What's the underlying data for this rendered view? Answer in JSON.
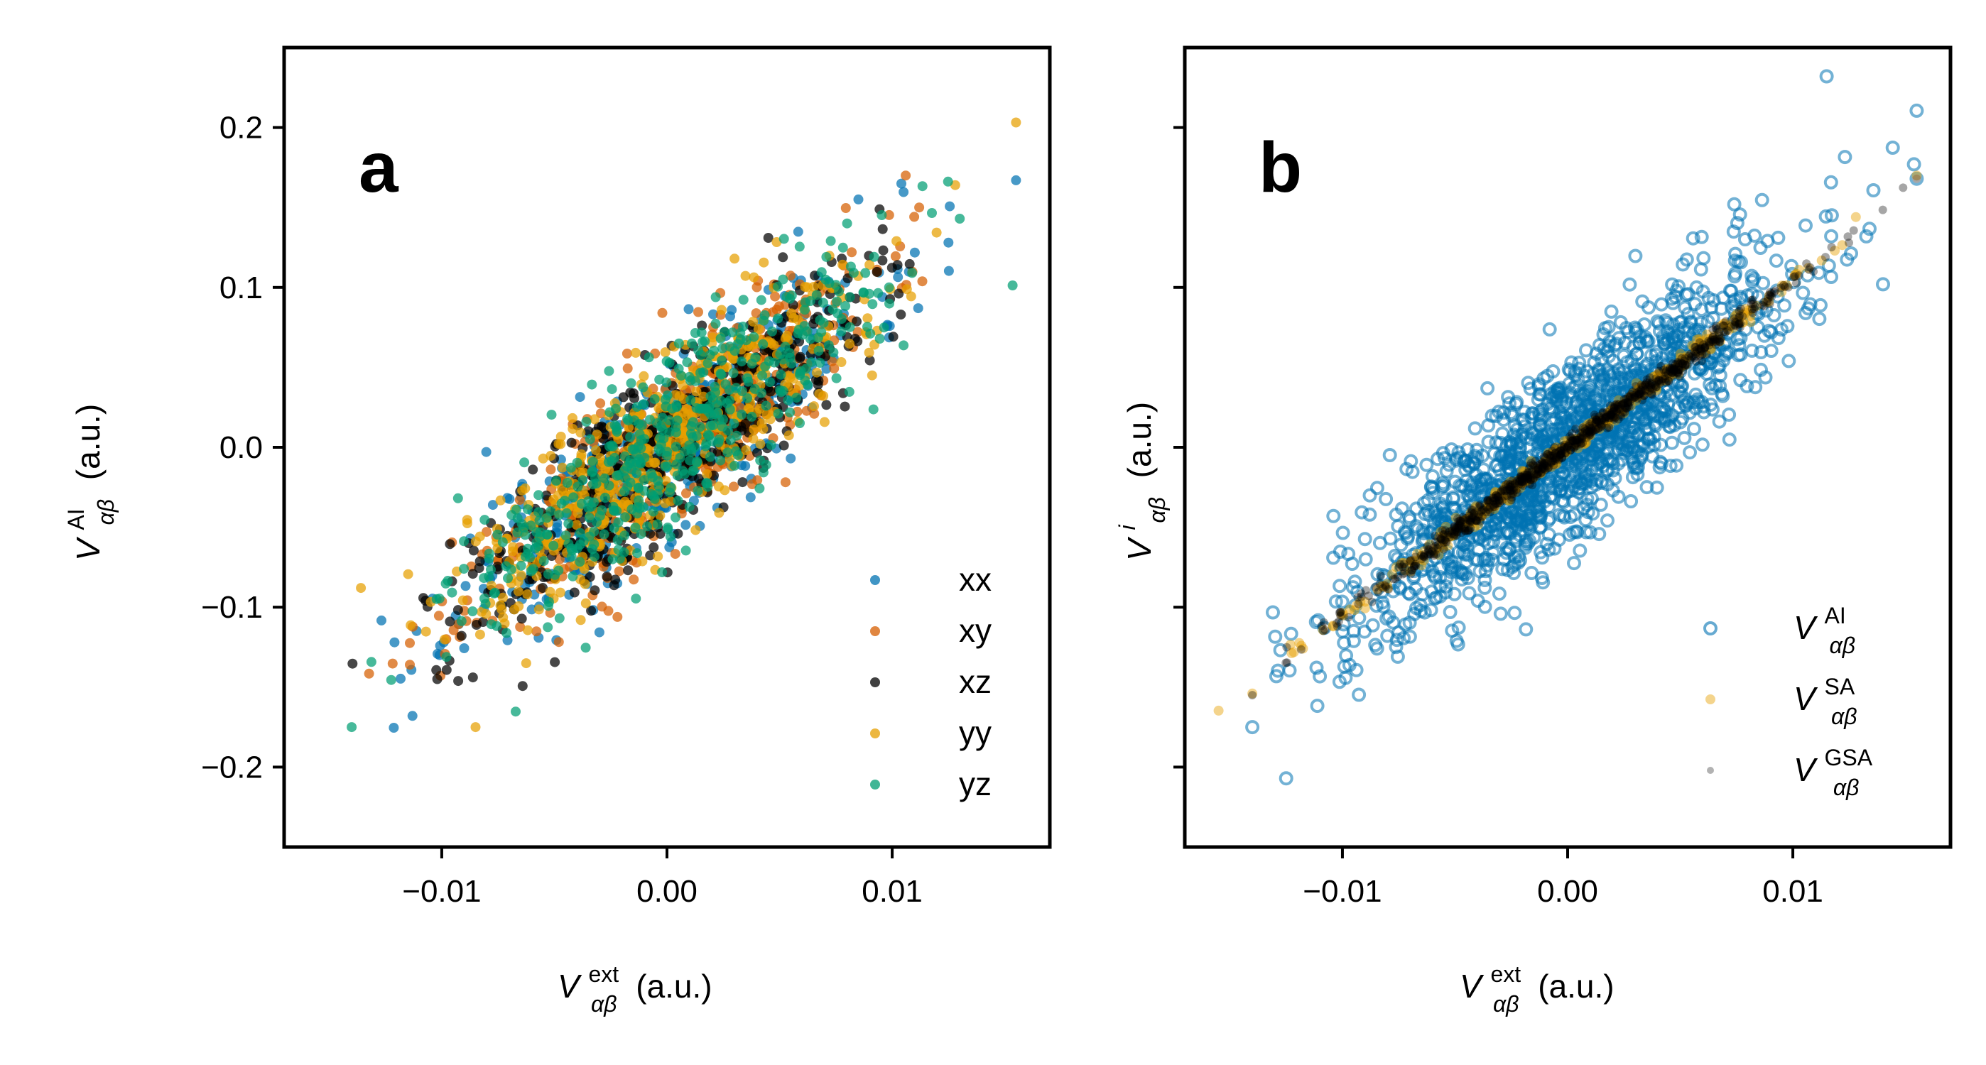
{
  "chart_data": [
    {
      "type": "scatter",
      "panel": "a",
      "xlabel": {
        "main": "V",
        "sup": "ext",
        "sub": "αβ",
        "unit": "(a.u.)"
      },
      "ylabel": {
        "main": "V",
        "sup": "AI",
        "sub": "αβ",
        "unit": "(a.u.)"
      },
      "xlim": [
        -0.017,
        0.017
      ],
      "ylim": [
        -0.25,
        0.25
      ],
      "xticks": [
        -0.01,
        0.0,
        0.01
      ],
      "xtick_labels": [
        "−0.01",
        "0.00",
        "0.01"
      ],
      "yticks": [
        -0.2,
        -0.1,
        0.0,
        0.1,
        0.2
      ],
      "ytick_labels": [
        "−0.2",
        "−0.1",
        "0.0",
        "0.1",
        "0.2"
      ],
      "legend_position": "bottom-right",
      "series": [
        {
          "name": "xx",
          "color": "#0072b2",
          "slope": 10.5,
          "sx": 0.0045,
          "noise": 0.028,
          "n": 480,
          "seed": 11,
          "outliers": [
            [
              0.0155,
              0.167
            ],
            [
              -0.0121,
              -0.122
            ],
            [
              -0.0113,
              -0.168
            ],
            [
              0.0125,
              0.128
            ],
            [
              0.0085,
              0.155
            ]
          ]
        },
        {
          "name": "xy",
          "color": "#d55e00",
          "slope": 10.5,
          "sx": 0.0045,
          "noise": 0.028,
          "n": 480,
          "seed": 23,
          "outliers": [
            [
              0.0106,
              0.17
            ],
            [
              -0.0098,
              -0.12
            ],
            [
              0.0112,
              0.15
            ]
          ]
        },
        {
          "name": "xz",
          "color": "#000000",
          "slope": 10.5,
          "sx": 0.0045,
          "noise": 0.028,
          "n": 480,
          "seed": 37,
          "outliers": [
            [
              -0.0102,
              -0.145
            ],
            [
              0.0045,
              0.131
            ],
            [
              -0.0088,
              -0.06
            ]
          ]
        },
        {
          "name": "yy",
          "color": "#e69f00",
          "slope": 10.5,
          "sx": 0.0045,
          "noise": 0.028,
          "n": 480,
          "seed": 51,
          "outliers": [
            [
              -0.0085,
              -0.175
            ],
            [
              0.0128,
              0.164
            ],
            [
              0.003,
              0.118
            ]
          ]
        },
        {
          "name": "yz",
          "color": "#009e73",
          "slope": 10.5,
          "sx": 0.0045,
          "noise": 0.028,
          "n": 480,
          "seed": 67,
          "outliers": [
            [
              -0.014,
              -0.175
            ],
            [
              0.013,
              0.143
            ],
            [
              0.008,
              0.14
            ]
          ]
        }
      ]
    },
    {
      "type": "scatter",
      "panel": "b",
      "xlabel": {
        "main": "V",
        "sup": "ext",
        "sub": "αβ",
        "unit": "(a.u.)"
      },
      "ylabel": {
        "main": "V",
        "sup": "i",
        "sub": "αβ",
        "unit": "(a.u.)"
      },
      "xlim": [
        -0.017,
        0.017
      ],
      "ylim": [
        -0.25,
        0.25
      ],
      "xticks": [
        -0.01,
        0.0,
        0.01
      ],
      "xtick_labels": [
        "−0.01",
        "0.00",
        "0.01"
      ],
      "yticks": [
        -0.2,
        -0.1,
        0.0,
        0.1,
        0.2
      ],
      "legend_position": "bottom-right",
      "series": [
        {
          "name": "AI",
          "color": "#0072b2",
          "slope": 10.5,
          "sx": 0.0045,
          "noise": 0.028,
          "n": 1500,
          "seed": 101,
          "outliers": [
            [
              0.0115,
              0.232
            ],
            [
              -0.0125,
              -0.207
            ],
            [
              -0.014,
              -0.175
            ],
            [
              0.0155,
              0.168
            ],
            [
              -0.0104,
              -0.043
            ],
            [
              0.0074,
              0.152
            ]
          ]
        },
        {
          "name": "SA",
          "color": "#e69f00",
          "slope": 10.5,
          "sx": 0.005,
          "noise": 0.003,
          "n": 400,
          "seed": 202,
          "outliers": [
            [
              0.0155,
              0.17
            ],
            [
              -0.014,
              -0.154
            ],
            [
              0.0128,
              0.144
            ]
          ]
        },
        {
          "name": "GSA",
          "color": "#000000",
          "slope": 10.5,
          "sx": 0.005,
          "noise": 0.003,
          "n": 700,
          "seed": 303,
          "outliers": [
            [
              0.0155,
              0.168
            ],
            [
              -0.014,
              -0.155
            ]
          ]
        }
      ]
    }
  ],
  "panels": {
    "a": {
      "letter": "a",
      "legend": [
        "xx",
        "xy",
        "xz",
        "yy",
        "yz"
      ]
    },
    "b": {
      "letter": "b",
      "legend": [
        {
          "main": "V",
          "sup": "AI",
          "sub": "αβ"
        },
        {
          "main": "V",
          "sup": "SA",
          "sub": "αβ"
        },
        {
          "main": "V",
          "sup": "GSA",
          "sub": "αβ"
        }
      ]
    }
  }
}
